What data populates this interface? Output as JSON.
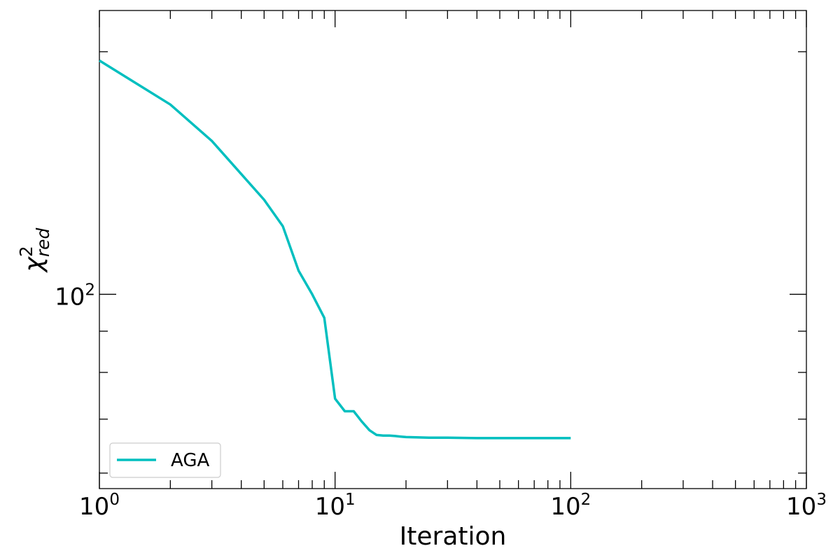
{
  "chart_data": {
    "type": "line",
    "xlabel": "Iteration",
    "ylabel_base": "χ",
    "ylabel_sup": "2",
    "ylabel_sub": "red",
    "xscale": "log",
    "yscale": "log",
    "xlim": [
      1,
      1000
    ],
    "ylim": [
      57.4,
      225
    ],
    "x_major_ticks": [
      {
        "base": "10",
        "exp": "0",
        "value": 1
      },
      {
        "base": "10",
        "exp": "1",
        "value": 10
      },
      {
        "base": "10",
        "exp": "2",
        "value": 100
      },
      {
        "base": "10",
        "exp": "3",
        "value": 1000
      }
    ],
    "y_major_ticks": [
      {
        "base": "10",
        "exp": "2",
        "value": 100
      }
    ],
    "grid": false,
    "legend_position": "lower-left",
    "series": [
      {
        "name": "AGA",
        "color": "#00bfbf",
        "x": [
          1,
          2,
          3,
          4,
          5,
          6,
          7,
          8,
          9,
          10,
          11,
          12,
          13,
          14,
          15,
          16,
          17,
          18,
          19,
          20,
          25,
          30,
          40,
          50,
          60,
          70,
          80,
          90,
          100
        ],
        "y": [
          195,
          172,
          155,
          141,
          131,
          121.5,
          107,
          100,
          93.5,
          74.2,
          71.6,
          71.6,
          69.5,
          67.8,
          66.9,
          66.8,
          66.8,
          66.7,
          66.6,
          66.5,
          66.4,
          66.4,
          66.3,
          66.3,
          66.3,
          66.3,
          66.3,
          66.3,
          66.3
        ]
      }
    ]
  }
}
